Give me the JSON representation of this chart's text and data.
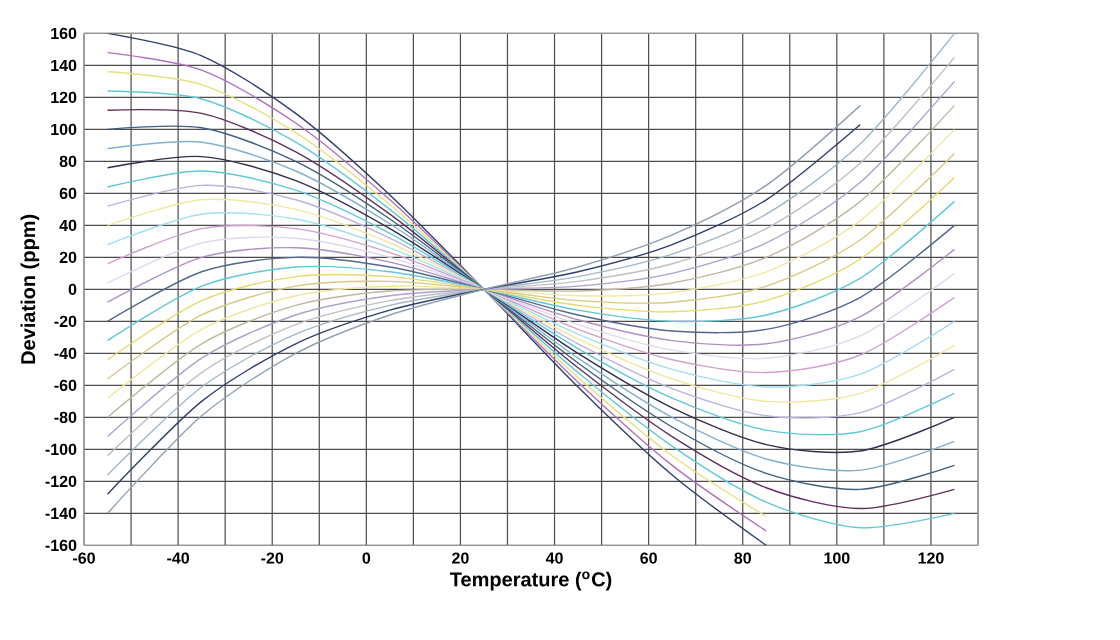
{
  "chart_data": {
    "type": "line",
    "xlabel": "Temperature ($^{o}$C)",
    "ylabel": "Deviation (ppm)",
    "x": [
      -55,
      -35,
      -15,
      5,
      25,
      45,
      65,
      85,
      105,
      125
    ],
    "xlim": [
      -60,
      130
    ],
    "ylim": [
      -160,
      160
    ],
    "xticks": [
      -60,
      {
        "value": -50,
        "label": null
      },
      -40,
      {
        "value": -30,
        "label": null
      },
      -20,
      {
        "value": -10,
        "label": null
      },
      0,
      {
        "value": 10,
        "label": null
      },
      20,
      {
        "value": 30,
        "label": null
      },
      40,
      {
        "value": 50,
        "label": null
      },
      60,
      {
        "value": 70,
        "label": null
      },
      80,
      {
        "value": 90,
        "label": null
      },
      100,
      {
        "value": 110,
        "label": null
      },
      120,
      {
        "value": 130,
        "label": null
      }
    ],
    "yticks": [
      -160,
      -140,
      -120,
      -100,
      -80,
      -60,
      -40,
      -20,
      0,
      20,
      40,
      60,
      80,
      100,
      120,
      140,
      160
    ],
    "grid": true,
    "marker": "none",
    "line_style": "solid",
    "series": [
      {
        "color": "#2f3f6f",
        "values": [
          160,
          146,
          110,
          59,
          0,
          -61,
          -116,
          -160,
          null,
          null
        ]
      },
      {
        "color": "#b070c0",
        "values": [
          148,
          137,
          104,
          56,
          0,
          -58,
          -110,
          -151,
          null,
          null
        ]
      },
      {
        "color": "#e8e080",
        "values": [
          136,
          128,
          98,
          53,
          0,
          -55,
          -104,
          -142,
          null,
          null
        ]
      },
      {
        "color": "#60c8d8",
        "values": [
          124,
          119,
          92,
          50,
          0,
          -52,
          -98,
          -133,
          -149,
          -140
        ]
      },
      {
        "color": "#603060",
        "values": [
          112,
          110,
          86,
          47,
          0,
          -49,
          -92,
          -124,
          -137,
          -125
        ]
      },
      {
        "color": "#406080",
        "values": [
          100,
          101,
          80,
          44,
          0,
          -46,
          -86,
          -115,
          -125,
          -110
        ]
      },
      {
        "color": "#80b0d0",
        "values": [
          88,
          92,
          74,
          41,
          0,
          -43,
          -80,
          -106,
          -113,
          -95
        ]
      },
      {
        "color": "#303050",
        "values": [
          76,
          83,
          68,
          38,
          0,
          -40,
          -74,
          -97,
          -101,
          -80
        ]
      },
      {
        "color": "#60c8d8",
        "values": [
          64,
          74,
          62,
          35,
          0,
          -37,
          -68,
          -88,
          -89,
          -65
        ]
      },
      {
        "color": "#c0b0e0",
        "values": [
          52,
          65,
          56,
          32,
          0,
          -34,
          -62,
          -79,
          -77,
          -50
        ]
      },
      {
        "color": "#f0e8a0",
        "values": [
          40,
          56,
          50,
          29,
          0,
          -31,
          -56,
          -70,
          -65,
          -35
        ]
      },
      {
        "color": "#a0e0f0",
        "values": [
          28,
          47,
          44,
          26,
          0,
          -28,
          -50,
          -61,
          -53,
          -20
        ]
      },
      {
        "color": "#d0a0d0",
        "values": [
          16,
          38,
          38,
          23,
          0,
          -25,
          -44,
          -52,
          -41,
          -5
        ]
      },
      {
        "color": "#e0d8f0",
        "values": [
          4,
          29,
          32,
          20,
          0,
          -22,
          -38,
          -43,
          -29,
          10
        ]
      },
      {
        "color": "#b090c0",
        "values": [
          -8,
          20,
          26,
          17,
          0,
          -19,
          -32,
          -34,
          -17,
          25
        ]
      },
      {
        "color": "#506890",
        "values": [
          -20,
          11,
          20,
          14,
          0,
          -16,
          -26,
          -25,
          -5,
          40
        ]
      },
      {
        "color": "#60c8d8",
        "values": [
          -32,
          2,
          14,
          11,
          0,
          -13,
          -20,
          -16,
          7,
          55
        ]
      },
      {
        "color": "#e8d870",
        "values": [
          -44,
          -7,
          8,
          8,
          0,
          -10,
          -14,
          -7,
          19,
          70
        ]
      },
      {
        "color": "#d8c880",
        "values": [
          -56,
          -16,
          2,
          5,
          0,
          -7,
          -8,
          2,
          31,
          85
        ]
      },
      {
        "color": "#f0e8a0",
        "values": [
          -68,
          -25,
          -4,
          2,
          0,
          -4,
          -2,
          11,
          43,
          100
        ]
      },
      {
        "color": "#c0b8a0",
        "values": [
          -80,
          -34,
          -10,
          -1,
          0,
          -1,
          4,
          20,
          55,
          115
        ]
      },
      {
        "color": "#b0a0d0",
        "values": [
          -92,
          -43,
          -16,
          -4,
          0,
          2,
          10,
          29,
          67,
          130
        ]
      },
      {
        "color": "#c0c0c0",
        "values": [
          -104,
          -52,
          -22,
          -7,
          0,
          5,
          16,
          38,
          79,
          145
        ]
      },
      {
        "color": "#a0b8c8",
        "values": [
          -116,
          -61,
          -28,
          -10,
          0,
          8,
          22,
          47,
          91,
          160
        ]
      },
      {
        "color": "#2f3f6f",
        "values": [
          -128,
          -70,
          -34,
          -13,
          0,
          11,
          28,
          56,
          103,
          null
        ]
      },
      {
        "color": "#90a0b0",
        "values": [
          -140,
          -79,
          -40,
          -16,
          0,
          14,
          34,
          65,
          115,
          null
        ]
      }
    ]
  }
}
